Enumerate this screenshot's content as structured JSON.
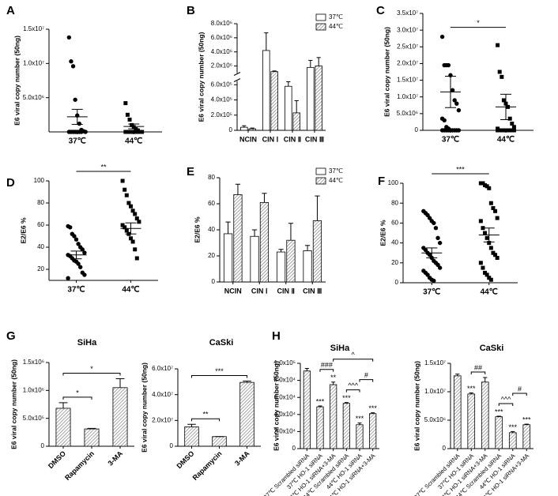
{
  "chart_data": [
    {
      "type": "dot",
      "panel": "A",
      "ylabel": "E6 viral copy number (50ng)",
      "ylim": [
        0,
        15000000
      ],
      "yticks": [
        {
          "value": 5000000,
          "label": "5.0x10⁶"
        },
        {
          "value": 10000000,
          "label": "1.0x10⁷"
        },
        {
          "value": 15000000,
          "label": "1.5x10⁷"
        }
      ],
      "groups": [
        {
          "name": "37℃",
          "marker": "circle",
          "points": [
            13800000,
            10300000,
            9600000,
            4700000,
            2400000,
            1200000,
            300000,
            100000,
            0,
            0,
            0,
            0,
            0,
            0,
            0,
            0
          ],
          "mean": 2200000,
          "sem": 1100000
        },
        {
          "name": "44℃",
          "marker": "square",
          "points": [
            4200000,
            2500000,
            1800000,
            1000000,
            700000,
            400000,
            200000,
            0,
            0,
            0,
            0,
            0,
            0,
            0,
            0,
            0
          ],
          "mean": 800000,
          "sem": 350000
        }
      ]
    },
    {
      "type": "bar",
      "panel": "B",
      "ylabel": "E6 viral copy number (50ng)",
      "legend": true,
      "y_segments": [
        {
          "ylim": [
            0,
            650000
          ],
          "yticks": [
            0,
            {
              "value": 200000,
              "label": "2.0x10⁵"
            },
            {
              "value": 400000,
              "label": "4.0x10⁵"
            },
            {
              "value": 600000,
              "label": "6.0x10⁵"
            }
          ]
        },
        {
          "ylim": [
            1000000,
            8000000
          ],
          "yticks": [
            {
              "value": 2000000,
              "label": "2.0x10⁶"
            },
            {
              "value": 4000000,
              "label": "4.0x10⁶"
            },
            {
              "value": 6000000,
              "label": "6.0x10⁶"
            },
            {
              "value": 8000000,
              "label": "8.0x10⁶"
            }
          ]
        }
      ],
      "categories": [
        "NCIN",
        "CIN Ⅰ",
        "CIN Ⅱ",
        "CIN Ⅲ"
      ],
      "series": [
        {
          "name": "37℃",
          "color": "#ffffff",
          "hatch": false,
          "values": [
            40000,
            4200000,
            580000,
            1800000
          ],
          "errors": [
            20000,
            2500000,
            60000,
            1000000
          ]
        },
        {
          "name": "44℃",
          "color": "#8a8a8a",
          "hatch": true,
          "values": [
            20000,
            1200000,
            230000,
            2000000
          ],
          "errors": [
            10000,
            100000,
            160000,
            1200000
          ]
        }
      ]
    },
    {
      "type": "dot",
      "panel": "C",
      "ylabel": "E6 viral copy number (50ng)",
      "significance": "*",
      "ylim": [
        0,
        35000000
      ],
      "yticks": [
        0,
        {
          "value": 5000000,
          "label": "5.0x10⁶"
        },
        {
          "value": 10000000,
          "label": "1.0x10⁷"
        },
        {
          "value": 15000000,
          "label": "1.5x10⁷"
        },
        {
          "value": 20000000,
          "label": "2.0x10⁷"
        },
        {
          "value": 25000000,
          "label": "2.5x10⁷"
        },
        {
          "value": 30000000,
          "label": "3.0x10⁷"
        },
        {
          "value": 35000000,
          "label": "3.5x10⁷"
        }
      ],
      "groups": [
        {
          "name": "37℃",
          "marker": "circle",
          "points": [
            28000000,
            19500000,
            19500000,
            19500000,
            16500000,
            12000000,
            9000000,
            8000000,
            6000000,
            3500000,
            3000000,
            1000000,
            500000,
            0,
            0,
            0,
            0,
            0,
            0,
            0,
            0,
            0
          ],
          "mean": 11500000,
          "sem": 4700000
        },
        {
          "name": "44℃",
          "marker": "square",
          "points": [
            25500000,
            17500000,
            16000000,
            9000000,
            8000000,
            7000000,
            3500000,
            2000000,
            1000000,
            500000,
            0,
            0,
            0,
            0,
            0,
            0,
            0,
            0,
            0,
            0
          ],
          "mean": 7000000,
          "sem": 3800000
        }
      ]
    },
    {
      "type": "dot",
      "panel": "D",
      "ylabel": "E2/E6 %",
      "significance": "**",
      "ylim": [
        10,
        100
      ],
      "yticks": [
        20,
        40,
        60,
        80,
        100
      ],
      "groups": [
        {
          "name": "37℃",
          "marker": "circle",
          "points": [
            59,
            58,
            52,
            50,
            47,
            43,
            40,
            38,
            35,
            33,
            32,
            30,
            28,
            27,
            25,
            22,
            17,
            15,
            12
          ],
          "mean": 33,
          "sem": 3.5
        },
        {
          "name": "44℃",
          "marker": "square",
          "points": [
            100,
            92,
            87,
            80,
            77,
            73,
            70,
            66,
            63,
            60,
            58,
            55,
            52,
            48,
            45,
            38,
            30
          ],
          "mean": 57,
          "sem": 5
        }
      ]
    },
    {
      "type": "bar",
      "panel": "E",
      "ylabel": "E2/E6 %",
      "legend": true,
      "ylim": [
        0,
        80
      ],
      "yticks": [
        0,
        20,
        40,
        60,
        80
      ],
      "categories": [
        "NCIN",
        "CIN Ⅰ",
        "CIN Ⅱ",
        "CIN Ⅲ"
      ],
      "series": [
        {
          "name": "37℃",
          "color": "#ffffff",
          "hatch": false,
          "values": [
            37,
            35,
            23,
            24
          ],
          "errors": [
            9,
            5,
            2,
            4
          ]
        },
        {
          "name": "44℃",
          "color": "#8a8a8a",
          "hatch": true,
          "values": [
            67,
            61,
            32,
            47
          ],
          "errors": [
            8,
            7,
            13,
            19
          ]
        }
      ]
    },
    {
      "type": "dot",
      "panel": "F",
      "ylabel": "E2/E6 %",
      "significance": "***",
      "ylim": [
        0,
        100
      ],
      "yticks": [
        0,
        20,
        40,
        60,
        80,
        100
      ],
      "groups": [
        {
          "name": "37℃",
          "marker": "circle",
          "points": [
            72,
            70,
            68,
            65,
            62,
            60,
            55,
            45,
            40,
            35,
            33,
            30,
            28,
            25,
            22,
            20,
            18,
            15,
            12,
            10,
            8,
            5,
            3,
            2
          ],
          "mean": 30,
          "sem": 5
        },
        {
          "name": "44℃",
          "marker": "square",
          "points": [
            100,
            100,
            98,
            97,
            95,
            80,
            75,
            72,
            65,
            62,
            55,
            50,
            45,
            40,
            35,
            30,
            28,
            25,
            20,
            15,
            10,
            8,
            5,
            3
          ],
          "mean": 48,
          "sem": 7
        }
      ]
    },
    {
      "type": "bar",
      "panel": "G",
      "title": "SiHa",
      "ylabel": "E6 viral copy number (50ng)",
      "ylim": [
        0,
        1500000
      ],
      "yticks": [
        0,
        {
          "value": 500000,
          "label": "5.0x10⁵"
        },
        {
          "value": 1000000,
          "label": "1.0x10⁶"
        },
        {
          "value": 1500000,
          "label": "1.5x10⁶"
        }
      ],
      "categories": [
        "DMSO",
        "Rapamycin",
        "3-MA"
      ],
      "series": [
        {
          "color": "#909090",
          "hatch": true,
          "values": [
            680000,
            310000,
            1050000
          ],
          "errors": [
            100000,
            10000,
            160000
          ]
        }
      ],
      "brackets": [
        {
          "label": "*",
          "bars": [
            0,
            1
          ]
        },
        {
          "label": "*",
          "bars": [
            0,
            2
          ]
        }
      ]
    },
    {
      "type": "bar",
      "title": "CaSki",
      "ylabel": "E6 viral copy number (50ng)",
      "ylim": [
        0,
        60000000
      ],
      "yticks": [
        0,
        {
          "value": 20000000,
          "label": "2.0x10⁷"
        },
        {
          "value": 40000000,
          "label": "4.0x10⁷"
        },
        {
          "value": 60000000,
          "label": "6.0x10⁷"
        }
      ],
      "categories": [
        "DMSO",
        "Rapamycin",
        "3-MA"
      ],
      "series": [
        {
          "color": "#909090",
          "hatch": true,
          "values": [
            15000000,
            7500000,
            49500000
          ],
          "errors": [
            2000000,
            0,
            1000000
          ]
        }
      ],
      "brackets": [
        {
          "label": "**",
          "bars": [
            0,
            1
          ]
        },
        {
          "label": "***",
          "bars": [
            0,
            2
          ]
        }
      ]
    },
    {
      "type": "bar",
      "panel": "H",
      "title": "SiHa",
      "ylabel": "E6 viral copy number (50ng)",
      "ylim": [
        0,
        100000
      ],
      "yticks": [
        0,
        {
          "value": 20000,
          "label": "2.0x10⁴"
        },
        {
          "value": 40000,
          "label": "4.0x10⁴"
        },
        {
          "value": 60000,
          "label": "6.0x10⁴"
        },
        {
          "value": 80000,
          "label": "8.0x10⁴"
        },
        {
          "value": 100000,
          "label": "1.0x10⁵"
        }
      ],
      "categories": [
        "37℃ Scrambled siRNA",
        "37℃ HO-1 siRNA",
        "37℃ HO-1 siRNA+3-MA",
        "44℃ Scrambled siRNA",
        "44℃ HO-1 siRNA",
        "44℃ HO-1 siRNA+3-MA"
      ],
      "series": [
        {
          "color": "#909090",
          "hatch": true,
          "values": [
            91000,
            49000,
            75000,
            53000,
            28000,
            41000
          ],
          "errors": [
            3000,
            1000,
            3000,
            1000,
            2000,
            1000
          ],
          "bar_labels": [
            null,
            "***",
            "**",
            "***",
            "***",
            "***"
          ]
        }
      ],
      "brackets": [
        {
          "label": "###",
          "bars": [
            1,
            2
          ]
        },
        {
          "label": "^^^",
          "bars": [
            3,
            4
          ]
        },
        {
          "label": "#",
          "bars": [
            4,
            5
          ]
        },
        {
          "label": "^",
          "bars": [
            2,
            5
          ]
        }
      ]
    },
    {
      "type": "bar",
      "title": "CaSki",
      "ylabel": "E6 viral copy number (50ng)",
      "ylim": [
        0,
        15000000
      ],
      "yticks": [
        0,
        {
          "value": 5000000,
          "label": "5.0x10⁶"
        },
        {
          "value": 10000000,
          "label": "1.0x10⁷"
        },
        {
          "value": 15000000,
          "label": "1.5x10⁷"
        }
      ],
      "categories": [
        "37℃ Scrambled siRNA",
        "37℃ HO-1 siRNA",
        "37℃ HO-1 siRNA+3-MA",
        "44℃ Scrambled siRNA",
        "44℃ HO-1 siRNA",
        "44℃ HO-1 siRNA+3-MA"
      ],
      "series": [
        {
          "color": "#909090",
          "hatch": true,
          "values": [
            12800000,
            9600000,
            11700000,
            5600000,
            2800000,
            4200000
          ],
          "errors": [
            300000,
            200000,
            800000,
            100000,
            200000,
            100000
          ],
          "bar_labels": [
            null,
            "***",
            null,
            "***",
            "***",
            "***"
          ]
        }
      ],
      "brackets": [
        {
          "label": "##",
          "bars": [
            1,
            2
          ]
        },
        {
          "label": "^^^",
          "bars": [
            3,
            4
          ]
        },
        {
          "label": "#",
          "bars": [
            4,
            5
          ]
        }
      ]
    }
  ]
}
